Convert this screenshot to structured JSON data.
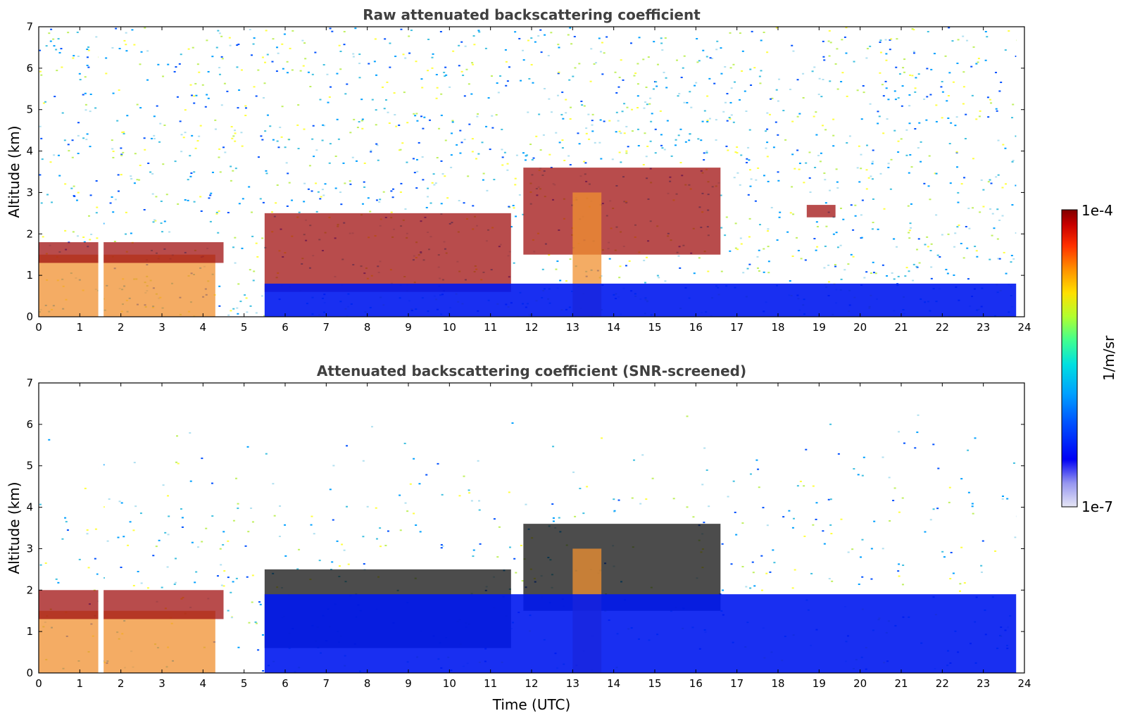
{
  "chart_data": [
    {
      "type": "heatmap",
      "title": "Raw attenuated backscattering coefficient",
      "ylabel": "Altitude (km)",
      "xlabel": "",
      "xlim": [
        0,
        24
      ],
      "ylim": [
        0,
        7
      ],
      "xticks": [
        "0",
        "1",
        "2",
        "3",
        "4",
        "5",
        "6",
        "7",
        "8",
        "9",
        "10",
        "11",
        "12",
        "13",
        "14",
        "15",
        "16",
        "17",
        "18",
        "19",
        "20",
        "21",
        "22",
        "23",
        "24"
      ],
      "yticks": [
        "0",
        "1",
        "2",
        "3",
        "4",
        "5",
        "6",
        "7"
      ],
      "data_gap_hours": [
        1.45,
        1.58
      ],
      "data_end_hour": 23.8,
      "features": [
        {
          "name": "boundary layer aerosol",
          "x": [
            0,
            4.3
          ],
          "y": [
            0,
            1.5
          ],
          "level": "high"
        },
        {
          "name": "boundary layer top",
          "x": [
            0,
            4.5
          ],
          "y": [
            1.3,
            1.8
          ],
          "level": "max"
        },
        {
          "name": "elevated cloud layer",
          "x": [
            5.5,
            11.5
          ],
          "y": [
            0.6,
            2.5
          ],
          "level": "max"
        },
        {
          "name": "cloud layer",
          "x": [
            11.8,
            16.6
          ],
          "y": [
            1.5,
            3.6
          ],
          "level": "max"
        },
        {
          "name": "cloud patch",
          "x": [
            18.7,
            19.4
          ],
          "y": [
            2.4,
            2.7
          ],
          "level": "max"
        },
        {
          "name": "precipitation streaks",
          "x": [
            13.0,
            13.7
          ],
          "y": [
            0,
            3
          ],
          "level": "high"
        },
        {
          "name": "clean near-surface layer",
          "x": [
            5.5,
            23.8
          ],
          "y": [
            0,
            0.8
          ],
          "level": "low"
        }
      ]
    },
    {
      "type": "heatmap",
      "title": "Attenuated backscattering coefficient (SNR-screened)",
      "ylabel": "Altitude (km)",
      "xlabel": "Time (UTC)",
      "xlim": [
        0,
        24
      ],
      "ylim": [
        0,
        7
      ],
      "xticks": [
        "0",
        "1",
        "2",
        "3",
        "4",
        "5",
        "6",
        "7",
        "8",
        "9",
        "10",
        "11",
        "12",
        "13",
        "14",
        "15",
        "16",
        "17",
        "18",
        "19",
        "20",
        "21",
        "22",
        "23",
        "24"
      ],
      "yticks": [
        "0",
        "1",
        "2",
        "3",
        "4",
        "5",
        "6",
        "7"
      ],
      "data_gap_hours": [
        1.45,
        1.58
      ],
      "data_end_hour": 23.8,
      "features": [
        {
          "name": "boundary layer aerosol",
          "x": [
            0,
            4.3
          ],
          "y": [
            0,
            1.5
          ],
          "level": "high"
        },
        {
          "name": "boundary layer top",
          "x": [
            0,
            4.5
          ],
          "y": [
            1.3,
            2.0
          ],
          "level": "max"
        },
        {
          "name": "elevated cloud layer",
          "x": [
            5.5,
            11.5
          ],
          "y": [
            0.6,
            2.5
          ],
          "level": "saturated"
        },
        {
          "name": "cloud layer",
          "x": [
            11.8,
            16.6
          ],
          "y": [
            1.5,
            3.6
          ],
          "level": "saturated"
        },
        {
          "name": "precipitation streaks",
          "x": [
            13.0,
            13.7
          ],
          "y": [
            0,
            3
          ],
          "level": "high"
        },
        {
          "name": "clean near-surface layer",
          "x": [
            5.5,
            23.8
          ],
          "y": [
            0,
            1.9
          ],
          "level": "low"
        }
      ]
    }
  ],
  "colorbar": {
    "max_label": "1e-4",
    "min_label": "1e-7",
    "unit_label": "1/m/sr",
    "colors": [
      "#e6e6f5",
      "#c6c6f0",
      "#9696f0",
      "#0000f5",
      "#0050ff",
      "#00a0ff",
      "#00e0e0",
      "#40ff90",
      "#b0ff30",
      "#ffe000",
      "#ff9000",
      "#ff3000",
      "#c80000",
      "#800000"
    ]
  },
  "colors": {
    "high": "#f09030",
    "max": "#a01010",
    "saturated": "#101010",
    "low": "#0018f0",
    "noise": [
      "#b0e0f0",
      "#0050ff",
      "#40c0e0",
      "#ffff40",
      "#00a0ff",
      "#c0f060"
    ]
  }
}
